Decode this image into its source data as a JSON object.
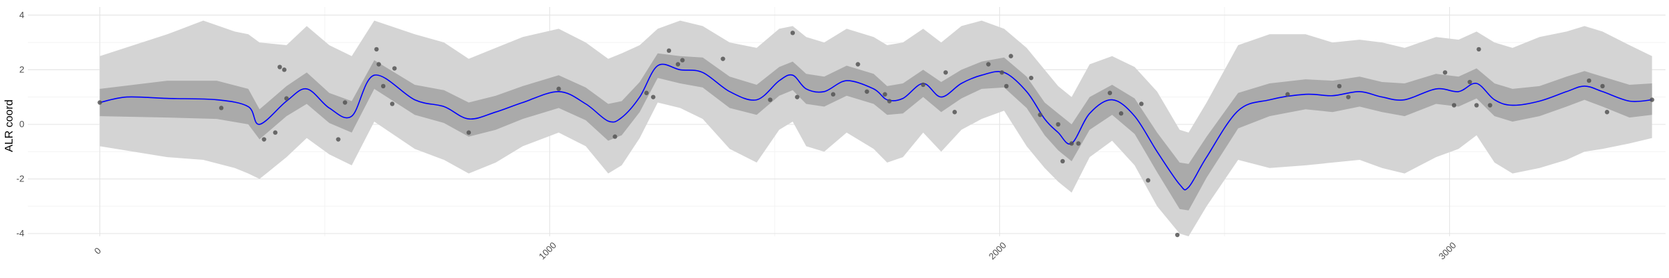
{
  "chart_data": {
    "type": "line",
    "title": "",
    "xlabel": "",
    "ylabel": "ALR coord",
    "xlim": [
      -160,
      3480
    ],
    "ylim": [
      -4.1,
      4.3
    ],
    "x_ticks": [
      0,
      1000,
      2000,
      3000
    ],
    "x_tick_labels": [
      "0",
      "1000",
      "2000",
      "3000"
    ],
    "y_ticks": [
      -4,
      -2,
      0,
      2,
      4
    ],
    "y_tick_labels": [
      "-4",
      "-2",
      "0",
      "2",
      "4"
    ],
    "grid": true,
    "legend": "none",
    "colors": {
      "mean_line": "#0000ff",
      "inner_band": "#aaaaaa",
      "outer_band": "#d4d4d4",
      "points": "#555555",
      "grid_major": "#e6e6e6",
      "grid_minor": "#f3f3f3"
    },
    "mean": {
      "x": [
        0,
        60,
        150,
        260,
        330,
        355,
        415,
        460,
        510,
        560,
        610,
        700,
        765,
        820,
        880,
        940,
        1020,
        1080,
        1130,
        1160,
        1200,
        1240,
        1290,
        1340,
        1400,
        1460,
        1510,
        1540,
        1570,
        1610,
        1660,
        1720,
        1750,
        1785,
        1830,
        1870,
        1915,
        1960,
        2010,
        2060,
        2100,
        2130,
        2160,
        2200,
        2250,
        2300,
        2350,
        2400,
        2420,
        2460,
        2530,
        2600,
        2680,
        2740,
        2800,
        2850,
        2900,
        2970,
        3020,
        3060,
        3100,
        3140,
        3200,
        3260,
        3300,
        3340,
        3400,
        3450
      ],
      "y": [
        0.8,
        1.0,
        0.95,
        0.9,
        0.65,
        0.0,
        0.85,
        1.3,
        0.6,
        0.3,
        1.8,
        0.9,
        0.65,
        0.2,
        0.45,
        0.8,
        1.2,
        0.75,
        0.12,
        0.25,
        1.0,
        2.15,
        2.0,
        1.9,
        1.2,
        0.9,
        1.6,
        1.8,
        1.3,
        1.2,
        1.6,
        1.3,
        0.9,
        0.95,
        1.5,
        1.0,
        1.5,
        1.8,
        1.9,
        1.2,
        0.2,
        -0.3,
        -0.7,
        0.4,
        0.9,
        0.3,
        -1.0,
        -2.2,
        -2.3,
        -1.2,
        0.5,
        0.9,
        1.1,
        1.05,
        1.2,
        1.0,
        0.9,
        1.3,
        1.2,
        1.5,
        0.9,
        0.7,
        0.85,
        1.2,
        1.4,
        1.2,
        0.85,
        0.9
      ]
    },
    "inner_band": {
      "x": [
        0,
        150,
        260,
        330,
        355,
        415,
        460,
        510,
        560,
        610,
        700,
        765,
        820,
        880,
        940,
        1020,
        1080,
        1130,
        1160,
        1200,
        1240,
        1290,
        1340,
        1400,
        1460,
        1510,
        1540,
        1570,
        1610,
        1660,
        1720,
        1750,
        1785,
        1830,
        1870,
        1915,
        1960,
        2010,
        2060,
        2100,
        2130,
        2160,
        2200,
        2250,
        2300,
        2350,
        2400,
        2420,
        2460,
        2530,
        2600,
        2680,
        2740,
        2800,
        2850,
        2900,
        2970,
        3020,
        3060,
        3100,
        3140,
        3200,
        3260,
        3300,
        3340,
        3400,
        3450
      ],
      "lower": [
        0.3,
        0.25,
        0.2,
        0.0,
        -0.55,
        0.3,
        0.75,
        0.05,
        -0.3,
        1.3,
        0.35,
        0.05,
        -0.45,
        -0.2,
        0.2,
        0.6,
        0.15,
        -0.6,
        -0.4,
        0.45,
        1.7,
        1.5,
        1.35,
        0.6,
        0.35,
        1.05,
        1.25,
        0.75,
        0.65,
        1.05,
        0.75,
        0.35,
        0.4,
        1.0,
        0.45,
        0.95,
        1.3,
        1.35,
        0.6,
        -0.4,
        -0.95,
        -1.35,
        -0.2,
        0.35,
        -0.35,
        -1.75,
        -3.1,
        -3.15,
        -1.95,
        -0.15,
        0.3,
        0.55,
        0.45,
        0.65,
        0.45,
        0.3,
        0.75,
        0.65,
        0.95,
        0.3,
        0.1,
        0.3,
        0.65,
        0.9,
        0.65,
        0.25,
        0.35
      ],
      "upper": [
        1.3,
        1.6,
        1.6,
        1.3,
        0.55,
        1.4,
        1.9,
        1.15,
        0.85,
        2.35,
        1.45,
        1.25,
        0.8,
        1.05,
        1.4,
        1.8,
        1.35,
        0.75,
        0.85,
        1.55,
        2.6,
        2.5,
        2.45,
        1.75,
        1.45,
        2.1,
        2.3,
        1.85,
        1.75,
        2.15,
        1.85,
        1.4,
        1.5,
        2.0,
        1.55,
        2.0,
        2.3,
        2.45,
        1.75,
        0.8,
        0.4,
        0.0,
        1.0,
        1.45,
        0.95,
        -0.3,
        -1.4,
        -1.45,
        -0.45,
        1.15,
        1.5,
        1.65,
        1.6,
        1.75,
        1.55,
        1.5,
        1.85,
        1.75,
        2.05,
        1.5,
        1.3,
        1.4,
        1.75,
        1.95,
        1.75,
        1.45,
        1.5
      ]
    },
    "outer_band": {
      "x": [
        0,
        150,
        230,
        300,
        330,
        355,
        415,
        460,
        510,
        560,
        610,
        700,
        765,
        820,
        880,
        940,
        1020,
        1080,
        1130,
        1160,
        1200,
        1240,
        1290,
        1340,
        1400,
        1460,
        1510,
        1540,
        1570,
        1610,
        1660,
        1720,
        1750,
        1785,
        1830,
        1870,
        1915,
        1960,
        2010,
        2060,
        2100,
        2130,
        2160,
        2200,
        2250,
        2300,
        2350,
        2400,
        2420,
        2460,
        2530,
        2600,
        2680,
        2740,
        2800,
        2850,
        2900,
        2970,
        3020,
        3060,
        3100,
        3140,
        3200,
        3260,
        3300,
        3340,
        3400,
        3450
      ],
      "lower": [
        -0.8,
        -1.2,
        -1.3,
        -1.6,
        -1.8,
        -2.0,
        -1.2,
        -0.5,
        -1.1,
        -1.5,
        0.1,
        -0.9,
        -1.3,
        -1.8,
        -1.4,
        -0.8,
        -0.3,
        -0.8,
        -1.8,
        -1.5,
        -0.5,
        0.8,
        0.6,
        0.2,
        -0.9,
        -1.4,
        -0.2,
        0.1,
        -0.8,
        -1.0,
        -0.3,
        -0.9,
        -1.4,
        -1.2,
        -0.3,
        -1.0,
        -0.2,
        0.2,
        0.5,
        -0.8,
        -1.6,
        -2.1,
        -2.5,
        -1.2,
        -0.6,
        -1.5,
        -3.0,
        -4.0,
        -4.1,
        -3.0,
        -1.3,
        -1.6,
        -1.5,
        -1.4,
        -1.3,
        -1.6,
        -1.8,
        -1.2,
        -0.9,
        -0.4,
        -1.4,
        -1.8,
        -1.6,
        -1.3,
        -1.0,
        -0.9,
        -0.7,
        -0.5
      ],
      "upper": [
        2.5,
        3.3,
        3.8,
        3.4,
        3.3,
        3.0,
        2.9,
        3.6,
        2.9,
        2.5,
        3.8,
        3.3,
        3.0,
        2.4,
        2.8,
        3.2,
        3.5,
        3.0,
        2.4,
        2.6,
        2.9,
        3.5,
        3.8,
        3.6,
        3.0,
        2.8,
        3.5,
        3.6,
        3.2,
        3.0,
        3.5,
        3.2,
        2.9,
        3.0,
        3.5,
        3.0,
        3.6,
        3.8,
        3.5,
        2.8,
        2.0,
        1.4,
        1.0,
        2.2,
        2.5,
        2.1,
        1.2,
        -0.2,
        -0.3,
        0.8,
        2.9,
        3.3,
        3.3,
        3.0,
        3.1,
        3.0,
        2.8,
        3.2,
        3.1,
        3.4,
        3.0,
        2.8,
        3.2,
        3.4,
        3.6,
        3.4,
        2.9,
        2.5
      ]
    },
    "points": {
      "x": [
        0,
        270,
        365,
        390,
        400,
        410,
        415,
        530,
        545,
        615,
        620,
        630,
        650,
        655,
        820,
        1020,
        1145,
        1215,
        1230,
        1265,
        1285,
        1295,
        1385,
        1490,
        1540,
        1550,
        1630,
        1685,
        1705,
        1745,
        1755,
        1830,
        1880,
        1900,
        1975,
        2005,
        2015,
        2025,
        2070,
        2090,
        2130,
        2140,
        2160,
        2175,
        2245,
        2270,
        2315,
        2330,
        2395,
        2640,
        2755,
        2775,
        2990,
        3010,
        3045,
        3060,
        3065,
        3090,
        3310,
        3340,
        3350,
        3450
      ],
      "y": [
        0.8,
        0.6,
        -0.55,
        -0.3,
        2.1,
        2.0,
        0.95,
        -0.55,
        0.8,
        2.75,
        2.2,
        1.4,
        0.75,
        2.05,
        -0.3,
        1.3,
        -0.45,
        1.15,
        1.0,
        2.7,
        2.2,
        2.35,
        2.4,
        0.9,
        3.35,
        1.0,
        1.1,
        2.2,
        1.2,
        1.1,
        0.85,
        1.45,
        1.9,
        0.45,
        2.2,
        1.9,
        1.4,
        2.5,
        1.7,
        0.35,
        0.0,
        -1.35,
        -0.7,
        -0.7,
        1.15,
        0.4,
        0.75,
        -2.05,
        -4.05,
        1.1,
        1.4,
        1.0,
        1.9,
        0.7,
        1.55,
        0.7,
        2.75,
        0.7,
        1.6,
        1.4,
        0.45,
        0.9
      ]
    }
  }
}
